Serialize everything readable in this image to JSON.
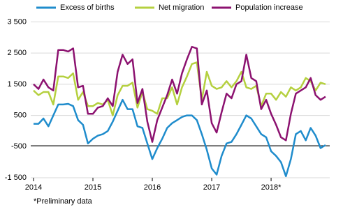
{
  "chart_data": {
    "type": "line",
    "categories": [
      "2014",
      null,
      null,
      null,
      null,
      null,
      null,
      null,
      null,
      null,
      null,
      null,
      "2015",
      null,
      null,
      null,
      null,
      null,
      null,
      null,
      null,
      null,
      null,
      null,
      "2016",
      null,
      null,
      null,
      null,
      null,
      null,
      null,
      null,
      null,
      null,
      null,
      "2017",
      null,
      null,
      null,
      null,
      null,
      null,
      null,
      null,
      null,
      null,
      null,
      "2018*",
      null,
      null,
      null,
      null,
      null,
      null,
      null,
      null,
      null,
      null,
      null
    ],
    "series": [
      {
        "name": "Excess of births",
        "color": "#1f8ccc",
        "values": [
          230,
          230,
          400,
          150,
          500,
          850,
          850,
          870,
          800,
          350,
          200,
          -400,
          -250,
          -150,
          -100,
          0,
          300,
          650,
          1000,
          700,
          700,
          150,
          100,
          -400,
          -900,
          -550,
          -250,
          100,
          250,
          350,
          450,
          500,
          500,
          350,
          -100,
          -600,
          -1200,
          -1400,
          -800,
          -400,
          -350,
          -100,
          200,
          500,
          400,
          150,
          -100,
          -200,
          -650,
          -800,
          -1000,
          -1450,
          -900,
          -100,
          0,
          -300,
          100,
          -150,
          -550,
          -450
        ]
      },
      {
        "name": "Net migration",
        "color": "#b5d03f",
        "values": [
          1300,
          1150,
          1250,
          1250,
          850,
          1750,
          1750,
          1700,
          1850,
          1000,
          1250,
          800,
          800,
          900,
          850,
          1000,
          500,
          1150,
          1450,
          1450,
          1550,
          750,
          1250,
          700,
          650,
          550,
          1050,
          1050,
          1400,
          850,
          1400,
          1750,
          2150,
          2200,
          1000,
          1900,
          1450,
          1350,
          1400,
          1600,
          1400,
          1600,
          1900,
          1400,
          1350,
          1450,
          800,
          1200,
          1200,
          1000,
          1250,
          1100,
          1400,
          1300,
          1400,
          1700,
          1600,
          1300,
          1550,
          1500
        ]
      },
      {
        "name": "Population increase",
        "color": "#8c1270",
        "values": [
          1500,
          1350,
          1650,
          1400,
          1300,
          2600,
          2600,
          2550,
          2650,
          1400,
          1450,
          550,
          550,
          750,
          800,
          1050,
          800,
          1900,
          2450,
          2150,
          2300,
          900,
          1350,
          300,
          -350,
          350,
          750,
          1150,
          1650,
          1200,
          1850,
          2300,
          2700,
          2650,
          850,
          1300,
          250,
          -50,
          600,
          1200,
          1050,
          1500,
          1600,
          2450,
          1700,
          1600,
          700,
          1000,
          550,
          200,
          -200,
          -300,
          550,
          1200,
          1300,
          1400,
          1700,
          1150,
          1000,
          1100
        ]
      }
    ],
    "ylim": [
      -1500,
      3800
    ],
    "yticks": [
      {
        "value": -1500,
        "label": "-1 500"
      },
      -500,
      500,
      {
        "value": 1500,
        "label": "1 500"
      },
      {
        "value": 2500,
        "label": "2 500"
      },
      {
        "value": 3500,
        "label": "3 500"
      }
    ],
    "grid": true,
    "footnote": "*Preliminary data"
  }
}
